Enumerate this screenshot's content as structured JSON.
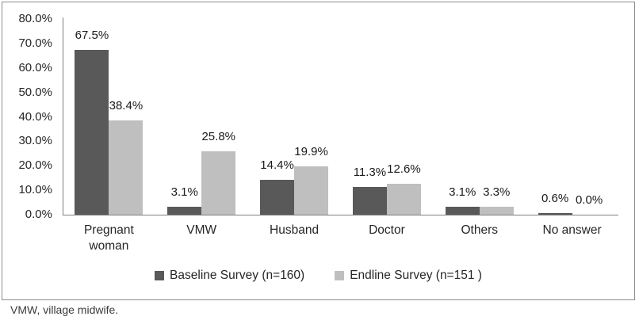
{
  "chart_data": {
    "type": "bar",
    "title": "",
    "xlabel": "",
    "ylabel": "",
    "ylim": [
      0,
      80
    ],
    "ytick_step": 10,
    "ytick_labels": [
      "80.0%",
      "70.0%",
      "60.0%",
      "50.0%",
      "40.0%",
      "30.0%",
      "20.0%",
      "10.0%",
      "0.0%"
    ],
    "grid": false,
    "legend_position": "bottom",
    "categories": [
      "Pregnant woman",
      "VMW",
      "Husband",
      "Doctor",
      "Others",
      "No answer"
    ],
    "series": [
      {
        "name": "Baseline Survey (n=160)",
        "color": "#595959",
        "values": [
          67.5,
          3.1,
          14.4,
          11.3,
          3.1,
          0.6
        ],
        "labels": [
          "67.5%",
          "3.1%",
          "14.4%",
          "11.3%",
          "3.1%",
          "0.6%"
        ]
      },
      {
        "name": "Endline Survey (n=151 )",
        "color": "#bfbfbf",
        "values": [
          38.4,
          25.8,
          19.9,
          12.6,
          3.3,
          0.0
        ],
        "labels": [
          "38.4%",
          "25.8%",
          "19.9%",
          "12.6%",
          "3.3%",
          "0.0%"
        ]
      }
    ]
  },
  "footnote": "VMW, village midwife."
}
